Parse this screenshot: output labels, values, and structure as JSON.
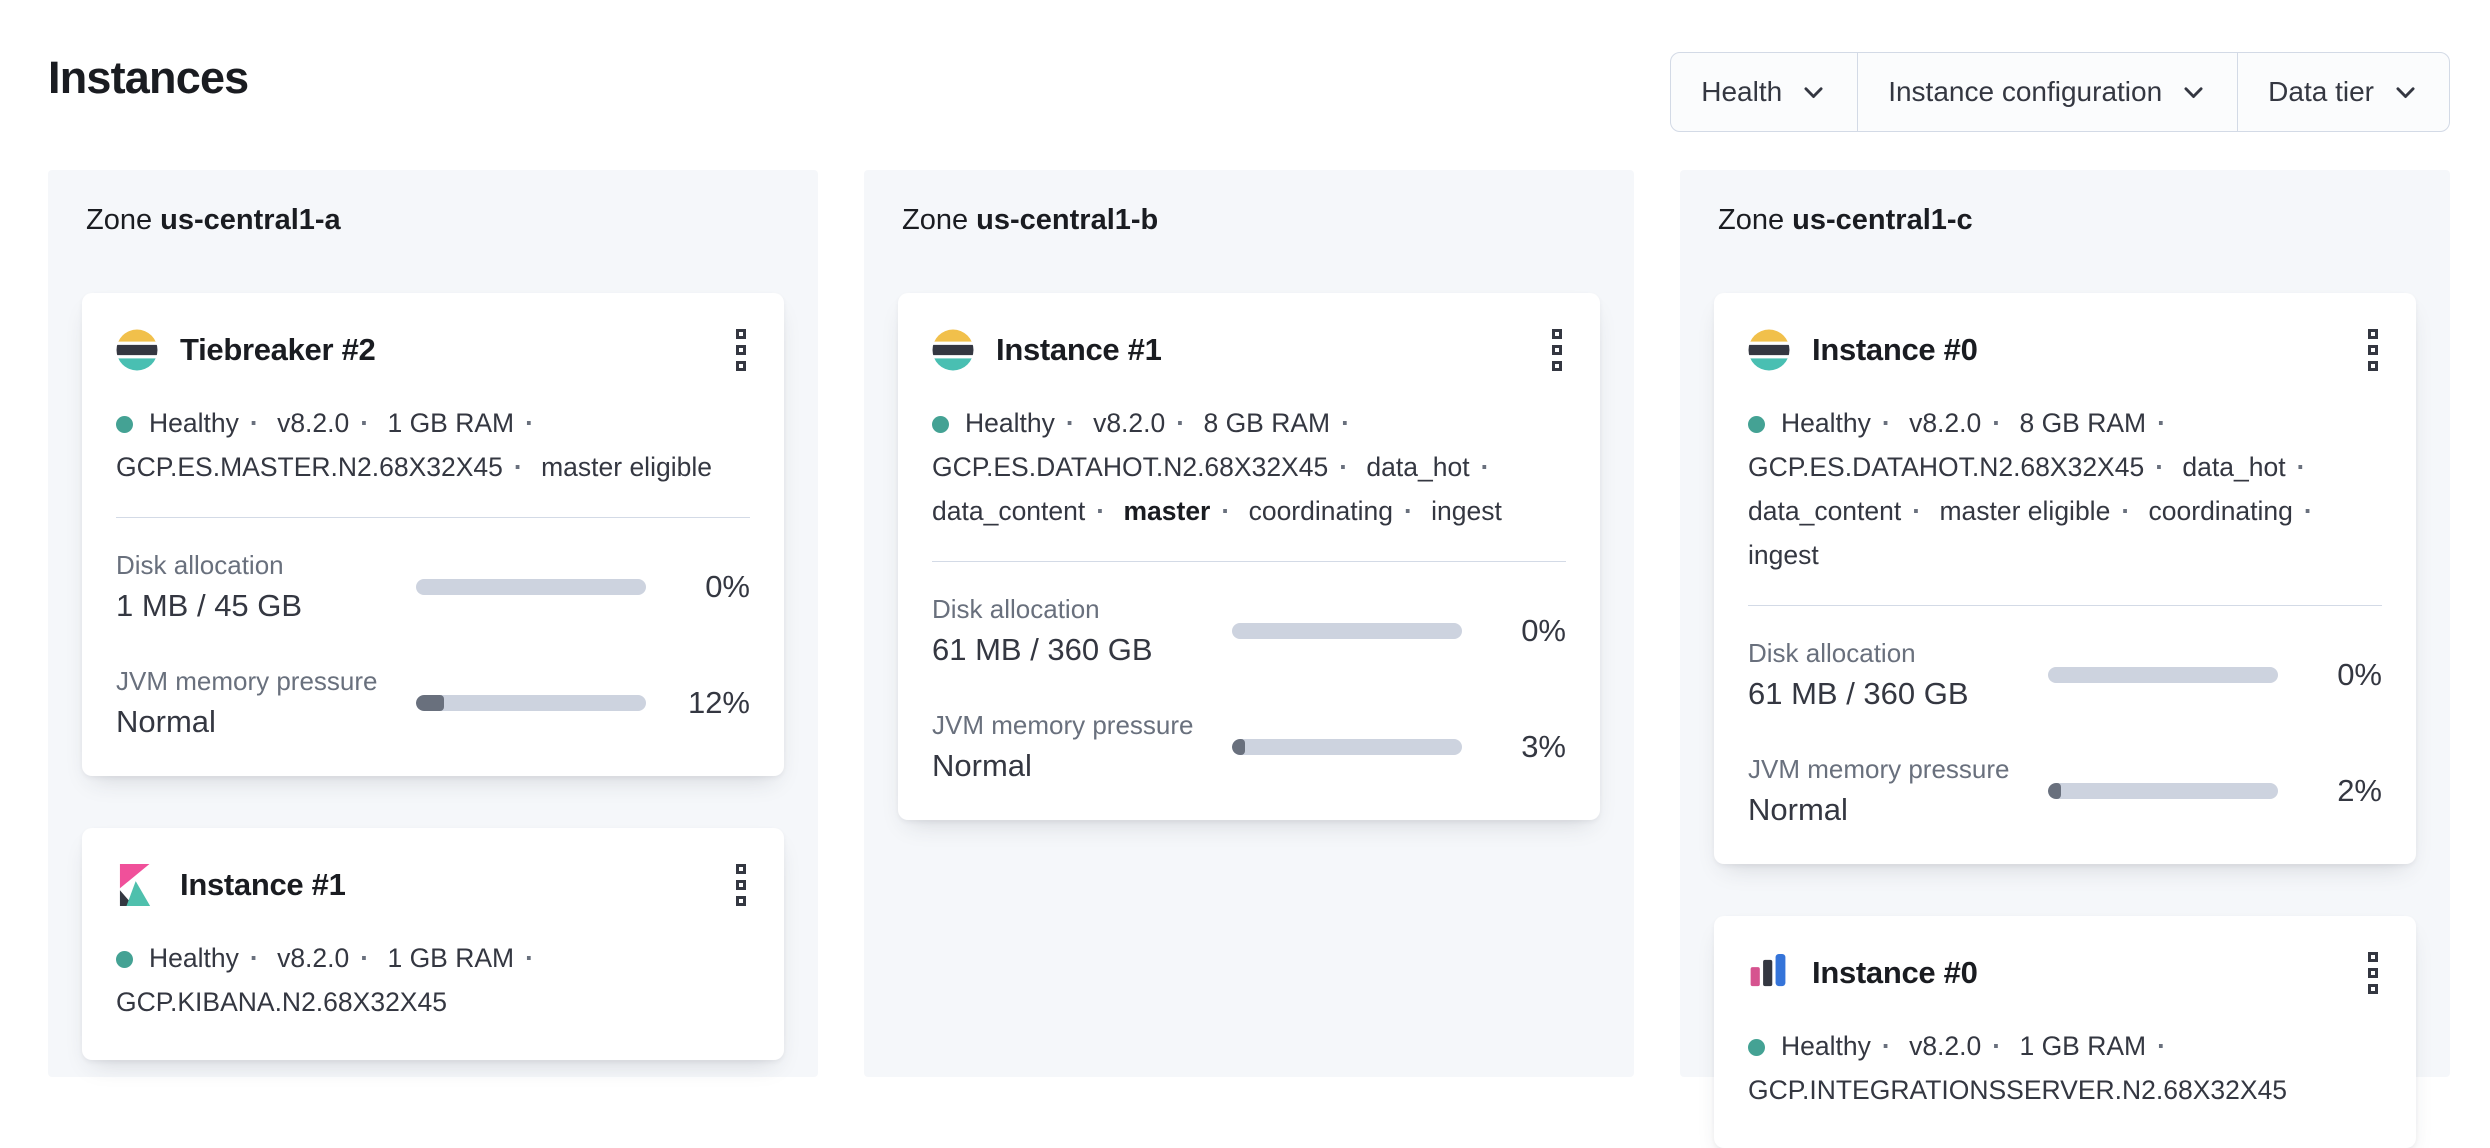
{
  "ui": {
    "separator": "·"
  },
  "colors": {
    "health_teal": "#44a294",
    "es_yellow": "#f1c04b",
    "es_dark": "#343741",
    "es_teal": "#49bfb2",
    "kibana_pink": "#f0509a",
    "kibana_dark": "#343741",
    "kibana_teal": "#4fc0ad",
    "integrations_pink": "#d6538f",
    "integrations_dark": "#343741",
    "integrations_blue": "#3574d9",
    "bar_track": "#cdd3df",
    "bar_fill": "#69707d"
  },
  "header": {
    "title": "Instances"
  },
  "filters": [
    {
      "label": "Health"
    },
    {
      "label": "Instance configuration"
    },
    {
      "label": "Data tier"
    }
  ],
  "zones": [
    {
      "label": "Zone",
      "name": "us-central1-a",
      "cards": [
        {
          "logo": "elasticsearch",
          "title": "Tiebreaker #2",
          "status": {
            "health": "Healthy",
            "tokens": [
              {
                "text": "Healthy"
              },
              {
                "text": "v8.2.0"
              },
              {
                "text": "1 GB RAM"
              },
              {
                "text": "GCP.ES.MASTER.N2.68X32X45"
              },
              {
                "text": "master eligible"
              }
            ]
          },
          "metrics": [
            {
              "label": "Disk allocation",
              "value": "1 MB / 45 GB",
              "percent": 0,
              "percent_label": "0%"
            },
            {
              "label": "JVM memory pressure",
              "value": "Normal",
              "percent": 12,
              "percent_label": "12%"
            }
          ]
        },
        {
          "logo": "kibana",
          "title": "Instance #1",
          "status": {
            "health": "Healthy",
            "tokens": [
              {
                "text": "Healthy"
              },
              {
                "text": "v8.2.0"
              },
              {
                "text": "1 GB RAM"
              },
              {
                "text": "GCP.KIBANA.N2.68X32X45"
              }
            ]
          }
        }
      ]
    },
    {
      "label": "Zone",
      "name": "us-central1-b",
      "cards": [
        {
          "logo": "elasticsearch",
          "title": "Instance #1",
          "status": {
            "health": "Healthy",
            "tokens": [
              {
                "text": "Healthy"
              },
              {
                "text": "v8.2.0"
              },
              {
                "text": "8 GB RAM"
              },
              {
                "text": "GCP.ES.DATAHOT.N2.68X32X45"
              },
              {
                "text": "data_hot"
              },
              {
                "text": "data_content"
              },
              {
                "text": "master",
                "bold": true
              },
              {
                "text": "coordinating"
              },
              {
                "text": "ingest"
              }
            ]
          },
          "metrics": [
            {
              "label": "Disk allocation",
              "value": "61 MB / 360 GB",
              "percent": 0,
              "percent_label": "0%"
            },
            {
              "label": "JVM memory pressure",
              "value": "Normal",
              "percent": 3,
              "percent_label": "3%"
            }
          ]
        }
      ]
    },
    {
      "label": "Zone",
      "name": "us-central1-c",
      "cards": [
        {
          "logo": "elasticsearch",
          "title": "Instance #0",
          "status": {
            "health": "Healthy",
            "tokens": [
              {
                "text": "Healthy"
              },
              {
                "text": "v8.2.0"
              },
              {
                "text": "8 GB RAM"
              },
              {
                "text": "GCP.ES.DATAHOT.N2.68X32X45"
              },
              {
                "text": "data_hot"
              },
              {
                "text": "data_content"
              },
              {
                "text": "master eligible"
              },
              {
                "text": "coordinating"
              },
              {
                "text": "ingest"
              }
            ]
          },
          "metrics": [
            {
              "label": "Disk allocation",
              "value": "61 MB / 360 GB",
              "percent": 0,
              "percent_label": "0%"
            },
            {
              "label": "JVM memory pressure",
              "value": "Normal",
              "percent": 2,
              "percent_label": "2%"
            }
          ]
        },
        {
          "logo": "integrations-server",
          "title": "Instance #0",
          "status": {
            "health": "Healthy",
            "tokens": [
              {
                "text": "Healthy"
              },
              {
                "text": "v8.2.0"
              },
              {
                "text": "1 GB RAM"
              },
              {
                "text": "GCP.INTEGRATIONSSERVER.N2.68X32X45"
              }
            ]
          }
        }
      ]
    }
  ]
}
